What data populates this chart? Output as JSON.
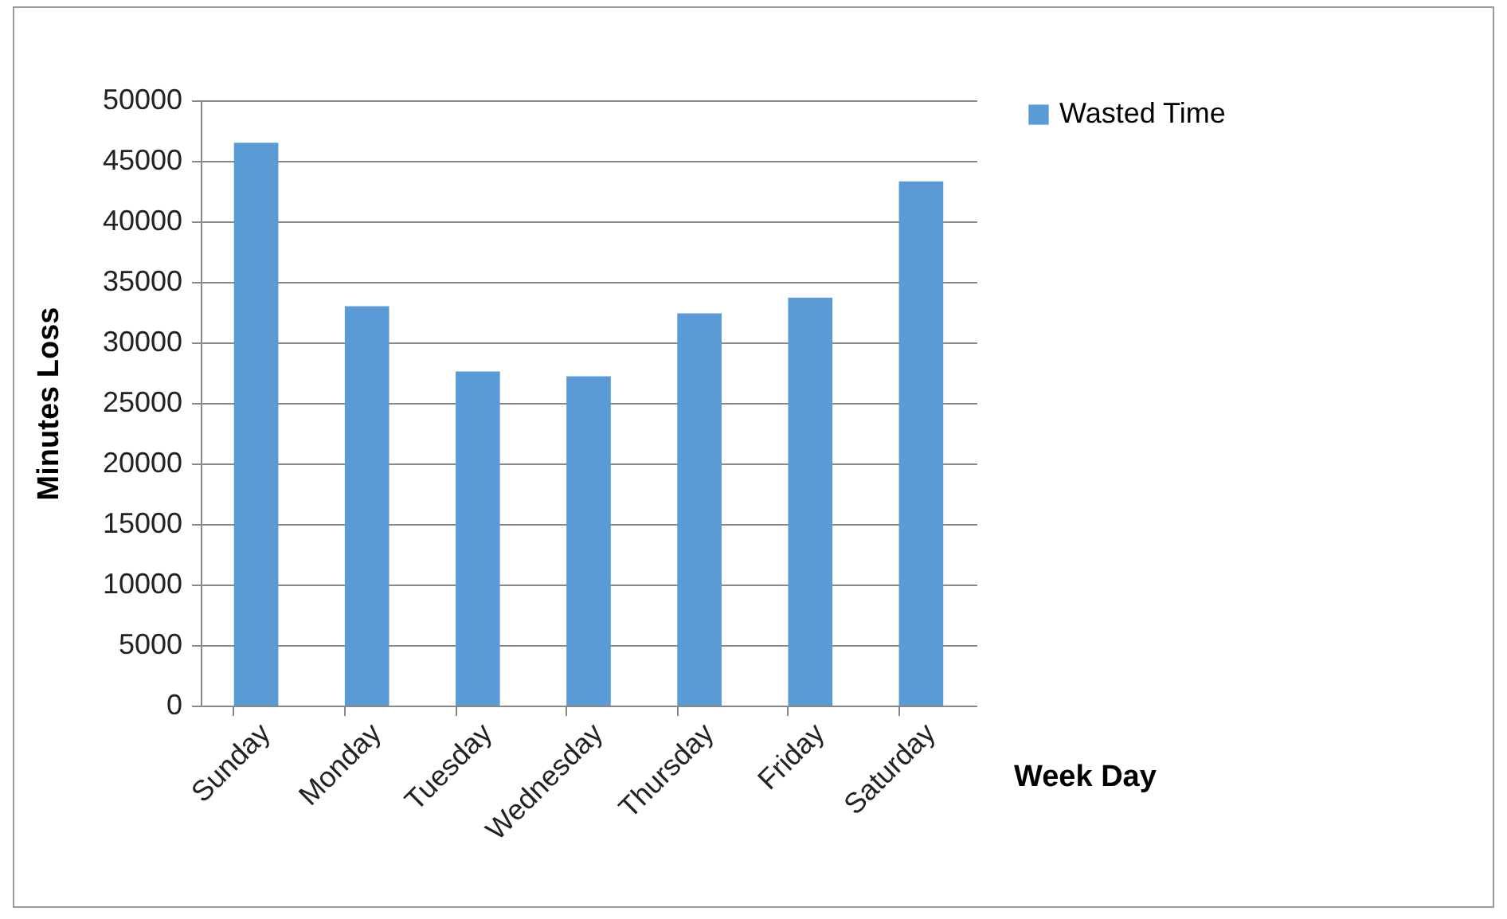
{
  "chart_data": {
    "type": "bar",
    "categories": [
      "Sunday",
      "Monday",
      "Tuesday",
      "Wednesday",
      "Thursday",
      "Friday",
      "Saturday"
    ],
    "series": [
      {
        "name": "Wasted Time",
        "color": "#5b9bd5",
        "values": [
          46500,
          33000,
          27600,
          27200,
          32400,
          33700,
          43300
        ]
      }
    ],
    "xlabel": "Week Day",
    "ylabel": "Minutes Loss",
    "ylim": [
      0,
      50000
    ],
    "yticks": [
      0,
      5000,
      10000,
      15000,
      20000,
      25000,
      30000,
      35000,
      40000,
      45000,
      50000
    ],
    "grid": "y",
    "legend": "right"
  }
}
